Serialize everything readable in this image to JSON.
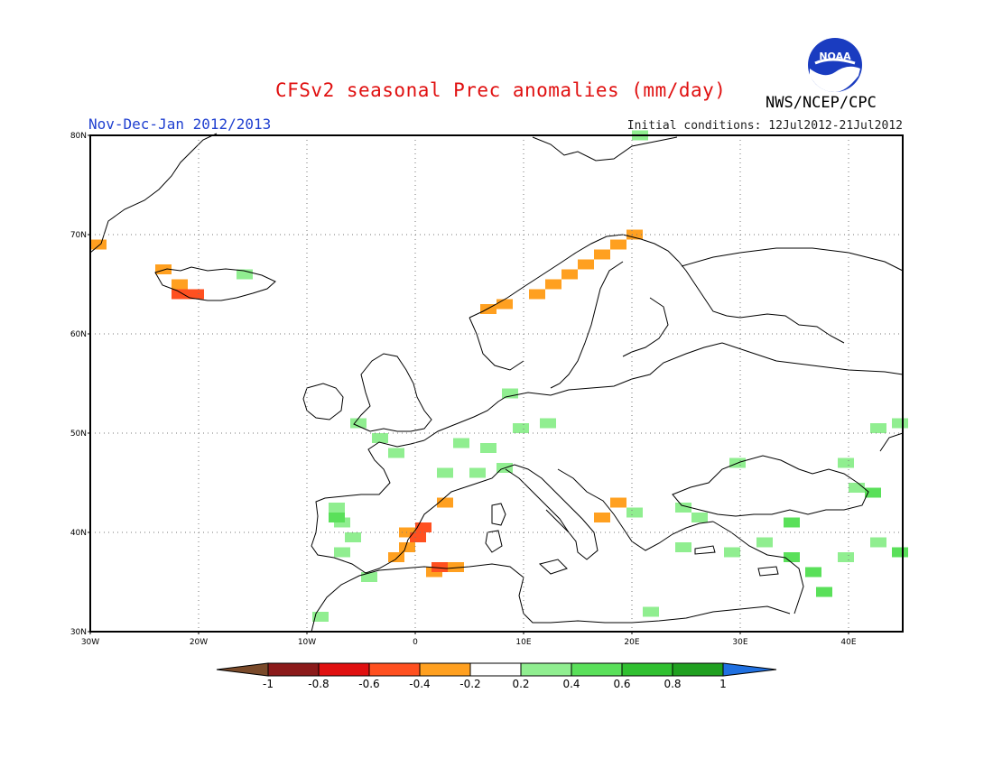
{
  "title": "CFSv2 seasonal Prec anomalies (mm/day)",
  "season_label": "Nov-Dec-Jan 2012/2013",
  "init_conditions": "Initial conditions: 12Jul2012-21Jul2012",
  "agency": "NWS/NCEP/CPC",
  "logo_text": "NOAA",
  "map": {
    "lon_min": -30,
    "lon_max": 45,
    "lat_min": 30,
    "lat_max": 80,
    "lat_labels": [
      "80N",
      "70N",
      "60N",
      "50N",
      "40N",
      "30N"
    ],
    "lon_labels": [
      "30W",
      "20W",
      "10W",
      "0",
      "10E",
      "20E",
      "30E",
      "40E"
    ]
  },
  "legend": {
    "colors": [
      "#8b1a1a",
      "#e01010",
      "#ff5020",
      "#ffa020",
      "#ffffff",
      "#90ee90",
      "#5ae05a",
      "#30c030",
      "#20a020"
    ],
    "low_color": "#7a4a2a",
    "high_color": "#2070e0",
    "labels": [
      "-1",
      "-0.8",
      "-0.6",
      "-0.4",
      "-0.2",
      "0.2",
      "0.4",
      "0.6",
      "0.8",
      "1"
    ]
  },
  "anomaly_cells": [
    {
      "lon": -30,
      "lat": 68.5,
      "v": "orange"
    },
    {
      "lon": -24,
      "lat": 66,
      "v": "orange"
    },
    {
      "lon": -22.5,
      "lat": 64.5,
      "v": "orange"
    },
    {
      "lon": -22.5,
      "lat": 63.5,
      "v": "red"
    },
    {
      "lon": -21,
      "lat": 63.5,
      "v": "red"
    },
    {
      "lon": -16.5,
      "lat": 65.5,
      "v": "lgreen"
    },
    {
      "lon": 6,
      "lat": 62,
      "v": "orange"
    },
    {
      "lon": 7.5,
      "lat": 62.5,
      "v": "orange"
    },
    {
      "lon": 10.5,
      "lat": 63.5,
      "v": "orange"
    },
    {
      "lon": 12,
      "lat": 64.5,
      "v": "orange"
    },
    {
      "lon": 13.5,
      "lat": 65.5,
      "v": "orange"
    },
    {
      "lon": 15,
      "lat": 66.5,
      "v": "orange"
    },
    {
      "lon": 16.5,
      "lat": 67.5,
      "v": "orange"
    },
    {
      "lon": 18,
      "lat": 68.5,
      "v": "orange"
    },
    {
      "lon": 19.5,
      "lat": 69.5,
      "v": "orange"
    },
    {
      "lon": 8,
      "lat": 53.5,
      "v": "lgreen"
    },
    {
      "lon": -6,
      "lat": 50.5,
      "v": "lgreen"
    },
    {
      "lon": -4,
      "lat": 49,
      "v": "lgreen"
    },
    {
      "lon": 3.5,
      "lat": 48.5,
      "v": "lgreen"
    },
    {
      "lon": 6,
      "lat": 48,
      "v": "lgreen"
    },
    {
      "lon": 9,
      "lat": 50,
      "v": "lgreen"
    },
    {
      "lon": 11.5,
      "lat": 50.5,
      "v": "lgreen"
    },
    {
      "lon": 2,
      "lat": 45.5,
      "v": "lgreen"
    },
    {
      "lon": 5,
      "lat": 45.5,
      "v": "lgreen"
    },
    {
      "lon": 7.5,
      "lat": 46,
      "v": "lgreen"
    },
    {
      "lon": -2.5,
      "lat": 47.5,
      "v": "lgreen"
    },
    {
      "lon": -8,
      "lat": 42,
      "v": "lgreen"
    },
    {
      "lon": -7.5,
      "lat": 40.5,
      "v": "lgreen"
    },
    {
      "lon": -6.5,
      "lat": 39,
      "v": "lgreen"
    },
    {
      "lon": -7.5,
      "lat": 37.5,
      "v": "lgreen"
    },
    {
      "lon": -8,
      "lat": 41,
      "v": "green"
    },
    {
      "lon": 2,
      "lat": 42.5,
      "v": "orange"
    },
    {
      "lon": -1.5,
      "lat": 39.5,
      "v": "orange"
    },
    {
      "lon": -1.5,
      "lat": 38,
      "v": "orange"
    },
    {
      "lon": -0.5,
      "lat": 39,
      "v": "red"
    },
    {
      "lon": 0,
      "lat": 40,
      "v": "red"
    },
    {
      "lon": -2.5,
      "lat": 37,
      "v": "orange"
    },
    {
      "lon": 1,
      "lat": 35.5,
      "v": "orange"
    },
    {
      "lon": 3,
      "lat": 36,
      "v": "orange"
    },
    {
      "lon": 1.5,
      "lat": 36,
      "v": "red"
    },
    {
      "lon": -5,
      "lat": 35,
      "v": "lgreen"
    },
    {
      "lon": -9.5,
      "lat": 31,
      "v": "lgreen"
    },
    {
      "lon": 16.5,
      "lat": 41,
      "v": "orange"
    },
    {
      "lon": 18,
      "lat": 42.5,
      "v": "orange"
    },
    {
      "lon": 19.5,
      "lat": 41.5,
      "v": "lgreen"
    },
    {
      "lon": 24,
      "lat": 42,
      "v": "lgreen"
    },
    {
      "lon": 25.5,
      "lat": 41,
      "v": "lgreen"
    },
    {
      "lon": 24,
      "lat": 38,
      "v": "lgreen"
    },
    {
      "lon": 28.5,
      "lat": 37.5,
      "v": "lgreen"
    },
    {
      "lon": 31.5,
      "lat": 38.5,
      "v": "lgreen"
    },
    {
      "lon": 34,
      "lat": 37,
      "v": "green"
    },
    {
      "lon": 36,
      "lat": 35.5,
      "v": "green"
    },
    {
      "lon": 37,
      "lat": 33.5,
      "v": "green"
    },
    {
      "lon": 39,
      "lat": 37,
      "v": "lgreen"
    },
    {
      "lon": 42,
      "lat": 38.5,
      "v": "lgreen"
    },
    {
      "lon": 44,
      "lat": 37.5,
      "v": "green"
    },
    {
      "lon": 34,
      "lat": 40.5,
      "v": "green"
    },
    {
      "lon": 40,
      "lat": 44,
      "v": "lgreen"
    },
    {
      "lon": 41.5,
      "lat": 43.5,
      "v": "green"
    },
    {
      "lon": 44,
      "lat": 50.5,
      "v": "lgreen"
    },
    {
      "lon": 42,
      "lat": 50,
      "v": "lgreen"
    },
    {
      "lon": 29,
      "lat": 46.5,
      "v": "lgreen"
    },
    {
      "lon": 39,
      "lat": 46.5,
      "v": "lgreen"
    },
    {
      "lon": 21,
      "lat": 31.5,
      "v": "lgreen"
    },
    {
      "lon": 20,
      "lat": 79.5,
      "v": "lgreen"
    }
  ]
}
